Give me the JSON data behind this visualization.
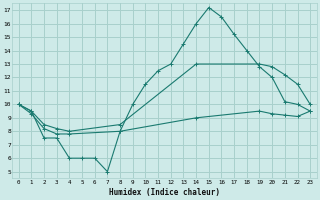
{
  "xlabel": "Humidex (Indice chaleur)",
  "bg_color": "#ceeae8",
  "grid_color": "#a8d0cc",
  "line_color": "#1a7a70",
  "xlim": [
    -0.5,
    23.5
  ],
  "ylim": [
    4.5,
    17.5
  ],
  "xticks": [
    0,
    1,
    2,
    3,
    4,
    5,
    6,
    7,
    8,
    9,
    10,
    11,
    12,
    13,
    14,
    15,
    16,
    17,
    18,
    19,
    20,
    21,
    22,
    23
  ],
  "yticks": [
    5,
    6,
    7,
    8,
    9,
    10,
    11,
    12,
    13,
    14,
    15,
    16,
    17
  ],
  "line1_x": [
    0,
    1,
    2,
    3,
    4,
    5,
    6,
    7,
    8,
    9,
    10,
    11,
    12,
    13,
    14,
    15,
    16,
    17,
    18,
    19,
    20,
    21,
    22,
    23
  ],
  "line1_y": [
    10,
    9.5,
    7.5,
    7.5,
    6.0,
    6.0,
    6.0,
    5.0,
    8.0,
    10.0,
    11.5,
    12.5,
    13.0,
    14.5,
    16.0,
    17.2,
    16.5,
    15.2,
    14.0,
    12.8,
    12.0,
    10.2,
    10.0,
    9.5
  ],
  "line2_x": [
    0,
    1,
    2,
    3,
    4,
    8,
    14,
    19,
    20,
    21,
    22,
    23
  ],
  "line2_y": [
    10,
    9.5,
    8.5,
    8.2,
    8.0,
    8.5,
    13.0,
    13.0,
    12.8,
    12.2,
    11.5,
    10.0
  ],
  "line3_x": [
    0,
    1,
    2,
    3,
    4,
    8,
    14,
    19,
    20,
    21,
    22,
    23
  ],
  "line3_y": [
    10,
    9.3,
    8.2,
    7.8,
    7.8,
    8.0,
    9.0,
    9.5,
    9.3,
    9.2,
    9.1,
    9.5
  ]
}
